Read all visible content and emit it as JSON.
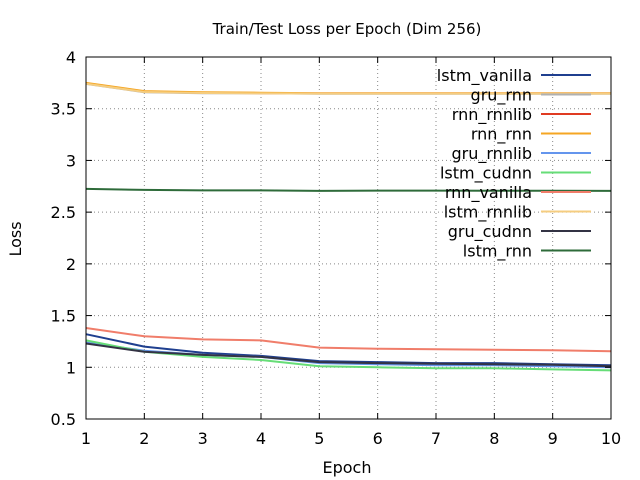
{
  "chart_data": {
    "type": "line",
    "title": "Train/Test Loss per Epoch (Dim 256)",
    "xlabel": "Epoch",
    "ylabel": "Loss",
    "xlim": [
      1,
      10
    ],
    "ylim": [
      0.5,
      4
    ],
    "xticks": [
      "1",
      "2",
      "3",
      "4",
      "5",
      "6",
      "7",
      "8",
      "9",
      "10"
    ],
    "yticks": [
      "0.5",
      "1",
      "1.5",
      "2",
      "2.5",
      "3",
      "3.5",
      "4"
    ],
    "grid": true,
    "legend_position": "top-right",
    "x": [
      1,
      2,
      3,
      4,
      5,
      6,
      7,
      8,
      9,
      10
    ],
    "series": [
      {
        "name": "lstm_vanilla",
        "color": "#1f3f8f",
        "values": [
          1.32,
          1.2,
          1.14,
          1.11,
          1.06,
          1.05,
          1.04,
          1.04,
          1.03,
          1.02
        ]
      },
      {
        "name": "gru_rnn",
        "color": "#b0b0b0",
        "values": [
          3.74,
          3.66,
          3.65,
          3.65,
          3.645,
          3.645,
          3.645,
          3.645,
          3.645,
          3.645
        ]
      },
      {
        "name": "rnn_rnnlib",
        "color": "#e03b22",
        "values": [
          3.745,
          3.665,
          3.655,
          3.65,
          3.648,
          3.648,
          3.648,
          3.648,
          3.648,
          3.648
        ]
      },
      {
        "name": "rnn_rnn",
        "color": "#f5a623",
        "values": [
          3.75,
          3.67,
          3.66,
          3.655,
          3.65,
          3.65,
          3.65,
          3.65,
          3.65,
          3.65
        ]
      },
      {
        "name": "gru_rnnlib",
        "color": "#6495ed",
        "values": [
          1.24,
          1.16,
          1.12,
          1.1,
          1.04,
          1.03,
          1.02,
          1.02,
          1.01,
          1.0
        ]
      },
      {
        "name": "lstm_cudnn",
        "color": "#66dd77",
        "values": [
          1.26,
          1.15,
          1.1,
          1.07,
          1.01,
          1.0,
          0.99,
          0.99,
          0.98,
          0.97
        ]
      },
      {
        "name": "rnn_vanilla",
        "color": "#f07d6a",
        "values": [
          1.38,
          1.3,
          1.27,
          1.26,
          1.19,
          1.18,
          1.175,
          1.17,
          1.165,
          1.155
        ]
      },
      {
        "name": "lstm_rnnlib",
        "color": "#f5cd80",
        "values": [
          3.742,
          3.662,
          3.652,
          3.648,
          3.646,
          3.646,
          3.646,
          3.646,
          3.646,
          3.646
        ]
      },
      {
        "name": "gru_cudnn",
        "color": "#333344",
        "values": [
          1.23,
          1.15,
          1.12,
          1.1,
          1.05,
          1.04,
          1.035,
          1.03,
          1.025,
          1.01
        ]
      },
      {
        "name": "lstm_rnn",
        "color": "#2e6b3a",
        "values": [
          2.725,
          2.715,
          2.71,
          2.71,
          2.705,
          2.708,
          2.708,
          2.707,
          2.707,
          2.705
        ]
      }
    ]
  }
}
